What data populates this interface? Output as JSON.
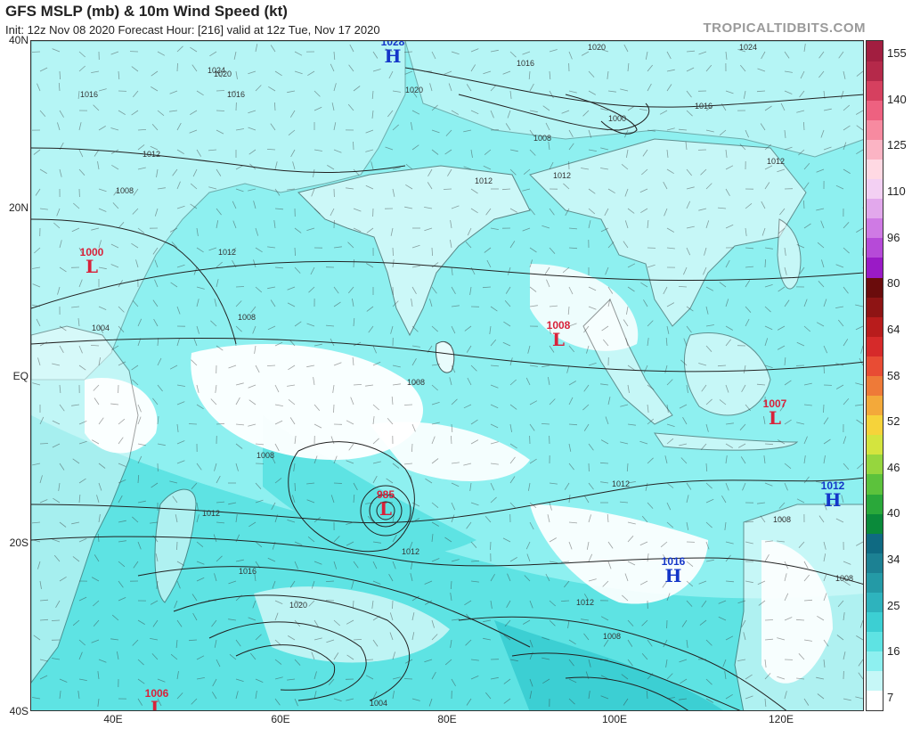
{
  "header": {
    "title": "GFS MSLP (mb) & 10m Wind Speed (kt)",
    "subtitle": "Init: 12z Nov 08 2020   Forecast Hour: [216]   valid at 12z Tue, Nov 17 2020",
    "brand": "TROPICALTIDBITS.COM"
  },
  "axes": {
    "lat_labels": [
      "40N",
      "20N",
      "EQ",
      "20S",
      "40S"
    ],
    "lon_labels": [
      "40E",
      "60E",
      "80E",
      "100E",
      "120E"
    ]
  },
  "colorbar": {
    "ticks": [
      "155",
      "140",
      "125",
      "110",
      "96",
      "80",
      "64",
      "58",
      "52",
      "46",
      "40",
      "34",
      "25",
      "16",
      "7"
    ],
    "colors": [
      "#ffffff",
      "#c6f7f7",
      "#8ef0f0",
      "#5ee3e3",
      "#3ccfd3",
      "#2eb3bd",
      "#249aa6",
      "#1c8193",
      "#0f6a82",
      "#0a8a3a",
      "#2aa83a",
      "#5cc23c",
      "#96d63e",
      "#d4e43e",
      "#f6d33a",
      "#f3a93a",
      "#ee7a38",
      "#e84c34",
      "#d62a2a",
      "#b81c1c",
      "#8e1414",
      "#6a0c0c",
      "#9a1ac6",
      "#b64ad8",
      "#cf7ae4",
      "#e2a8ec",
      "#f3d0f3",
      "#ffd9e3",
      "#fbb4c4",
      "#f78aa0",
      "#ee6180",
      "#d6405f",
      "#b5294a",
      "#a21e40"
    ],
    "unit": "kt"
  },
  "systems": [
    {
      "type": "H",
      "pressure": "1028"
    },
    {
      "type": "L",
      "pressure": "1000"
    },
    {
      "type": "L",
      "pressure": "1008"
    },
    {
      "type": "L",
      "pressure": "1007"
    },
    {
      "type": "L",
      "pressure": "985"
    },
    {
      "type": "H",
      "pressure": "1012"
    },
    {
      "type": "H",
      "pressure": "1016"
    },
    {
      "type": "L",
      "pressure": "1006"
    }
  ],
  "isobar_labels": [
    "1024",
    "1020",
    "1016",
    "1016",
    "1012",
    "1008",
    "1004",
    "1008",
    "1012",
    "1012",
    "1016",
    "1020",
    "1020",
    "1012",
    "1008",
    "1012",
    "1008",
    "1012",
    "1024",
    "1016",
    "1000",
    "1008",
    "1012",
    "1008",
    "1008",
    "1012",
    "1016",
    "1020",
    "1012",
    "1008",
    "1004"
  ]
}
